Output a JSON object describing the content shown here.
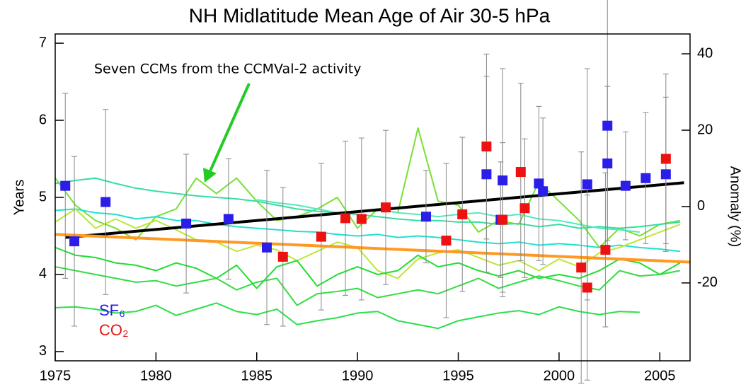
{
  "chart_data": {
    "type": "line",
    "title": "NH Midlatitude Mean Age of Air  30-5 hPa",
    "ylabel": "Years",
    "y2label": "Anomaly (%)",
    "annotation": "Seven CCMs from the CCMVal-2 activity",
    "xlim": [
      1975,
      2006.5
    ],
    "xticks": [
      1975,
      1980,
      1985,
      1990,
      1995,
      2000,
      2005
    ],
    "ylim": [
      2.88,
      7.12
    ],
    "yticks": [
      3,
      4,
      5,
      6,
      7
    ],
    "y2lim": [
      -40.4,
      45.2
    ],
    "y2ticks": [
      -20,
      0,
      20,
      40
    ],
    "legend": "lower left",
    "series": [
      {
        "name": "SF₆",
        "color": "#2a1ee8",
        "marker": "square",
        "x": [
          1975.5,
          1975.95,
          1977.5,
          1981.5,
          1983.6,
          1985.5,
          1993.4,
          1996.4,
          1997.2,
          1997.1,
          1999.0,
          1999.2,
          2001.4,
          2002.4,
          2002.4,
          2003.3,
          2004.3,
          2005.3
        ],
        "values": [
          5.15,
          4.43,
          4.94,
          4.66,
          4.72,
          4.35,
          4.75,
          5.3,
          5.22,
          4.71,
          5.18,
          5.08,
          5.17,
          5.44,
          5.93,
          5.15,
          5.25,
          5.3
        ],
        "errors": [
          1.2,
          1.1,
          1.2,
          0.9,
          0.78,
          1.0,
          0.6,
          1.27,
          1.45,
          0.75,
          1.0,
          0.95,
          1.5,
          1.0,
          1.65,
          0.7,
          0.85,
          1.0
        ]
      },
      {
        "name": "CO₂",
        "color": "#ee1111",
        "marker": "square",
        "x": [
          1986.3,
          1988.2,
          1989.4,
          1990.2,
          1991.4,
          1994.4,
          1995.2,
          1996.4,
          1997.2,
          1998.1,
          1998.3,
          2001.1,
          2001.4,
          2002.3,
          2005.3
        ],
        "values": [
          4.23,
          4.49,
          4.73,
          4.72,
          4.87,
          4.44,
          4.78,
          5.66,
          4.71,
          5.33,
          4.86,
          4.09,
          3.83,
          4.32,
          5.5
        ],
        "errors": [
          0.9,
          0.95,
          1.0,
          1.05,
          1.0,
          1.0,
          1.0,
          1.2,
          1.0,
          1.15,
          0.9,
          1.5,
          1.2,
          1.0,
          1.1
        ]
      },
      {
        "color": "#77e033",
        "linewidth": 2,
        "x": [
          1975,
          1976,
          1977,
          1978,
          1979,
          1980,
          1981,
          1982,
          1983,
          1984,
          1985,
          1986,
          1987,
          1988,
          1989,
          1990,
          1991,
          1992,
          1993,
          1994,
          1995,
          1996,
          1997,
          1998,
          1999,
          2000,
          2001,
          2002,
          2003,
          2004,
          2005,
          2006
        ],
        "values": [
          5.25,
          4.9,
          4.7,
          4.6,
          4.45,
          4.75,
          4.85,
          5.25,
          5.05,
          5.25,
          4.95,
          4.7,
          4.75,
          4.85,
          5.0,
          4.6,
          4.85,
          4.8,
          5.9,
          4.95,
          4.9,
          4.55,
          4.7,
          4.65,
          5.2,
          4.95,
          4.7,
          4.35,
          4.6,
          4.5,
          4.65,
          4.7
        ]
      },
      {
        "color": "#33e0a0",
        "linewidth": 2,
        "x": [
          1975,
          1976,
          1977,
          1978,
          1979,
          1980,
          1981,
          1982,
          1983,
          1984,
          1985,
          1986,
          1987,
          1988,
          1989,
          1990,
          1991,
          1992,
          1993,
          1994,
          1995,
          1996,
          1997,
          1998,
          1999,
          2000,
          2001,
          2002,
          2003,
          2004,
          2005,
          2006
        ],
        "values": [
          5.18,
          5.22,
          5.25,
          5.18,
          5.12,
          5.08,
          5.05,
          5.02,
          5.0,
          4.98,
          4.95,
          4.9,
          4.85,
          4.82,
          4.8,
          4.78,
          4.75,
          4.72,
          4.7,
          4.7,
          4.68,
          4.68,
          4.65,
          4.66,
          4.62,
          4.65,
          4.6,
          4.62,
          4.6,
          4.62,
          4.65,
          4.68
        ]
      },
      {
        "color": "#22e0d0",
        "linewidth": 2,
        "x": [
          1975,
          1976,
          1977,
          1978,
          1979,
          1980,
          1981,
          1982,
          1983,
          1984,
          1985,
          1986,
          1987,
          1988,
          1989,
          1990,
          1991,
          1992,
          1993,
          1994,
          1995,
          1996,
          1997,
          1998,
          1999,
          2000,
          2001,
          2002,
          2003,
          2004,
          2005,
          2006
        ],
        "values": [
          4.83,
          4.85,
          4.8,
          4.78,
          4.72,
          4.75,
          4.7,
          4.7,
          4.65,
          4.62,
          4.6,
          4.58,
          4.56,
          4.55,
          4.52,
          4.5,
          4.52,
          4.48,
          4.5,
          4.48,
          4.45,
          4.42,
          4.4,
          4.42,
          4.38,
          4.4,
          4.38,
          4.35,
          4.38,
          4.35,
          4.33,
          4.3
        ]
      },
      {
        "color": "#55e8c0",
        "linewidth": 2,
        "x": [
          1985,
          1986,
          1987,
          1988,
          1989,
          1990,
          1991,
          1992,
          1993,
          1994,
          1995,
          1996,
          1997,
          1998,
          1999,
          2000,
          2001,
          2002,
          2003,
          2004
        ],
        "values": [
          4.97,
          4.93,
          4.9,
          4.85,
          4.8,
          4.82,
          4.85,
          4.8,
          4.78,
          4.75,
          4.78,
          4.8,
          4.75,
          4.78,
          4.72,
          4.7,
          4.65,
          4.6,
          4.58,
          4.55
        ]
      },
      {
        "color": "#bbe833",
        "linewidth": 2,
        "x": [
          1975,
          1976,
          1977,
          1978,
          1979,
          1980,
          1981,
          1982,
          1983,
          1984,
          1985,
          1986,
          1987,
          1988,
          1989,
          1990,
          1991,
          1992,
          1993,
          1994,
          1995,
          1996,
          1997,
          1998,
          1999,
          2000,
          2001,
          2002,
          2003,
          2004,
          2005,
          2006
        ],
        "values": [
          4.68,
          4.85,
          4.6,
          4.72,
          4.6,
          4.7,
          4.58,
          4.45,
          4.42,
          4.3,
          4.38,
          4.32,
          4.18,
          4.3,
          4.42,
          4.35,
          4.05,
          3.95,
          4.2,
          4.28,
          4.32,
          4.22,
          4.12,
          4.18,
          4.05,
          4.2,
          4.1,
          4.28,
          4.35,
          4.45,
          4.55,
          4.65
        ]
      },
      {
        "color": "#22dd33",
        "linewidth": 2,
        "x": [
          1975,
          1976,
          1977,
          1978,
          1979,
          1980,
          1981,
          1982,
          1983,
          1984,
          1985,
          1986,
          1987,
          1988,
          1989,
          1990,
          1991,
          1992,
          1993,
          1994,
          1995,
          1996,
          1997,
          1998,
          1999,
          2000,
          2001,
          2002,
          2003,
          2004,
          2005,
          2006
        ],
        "values": [
          4.35,
          4.25,
          4.22,
          4.15,
          4.12,
          4.05,
          4.15,
          4.08,
          3.95,
          4.12,
          3.82,
          4.1,
          4.18,
          3.85,
          4.0,
          4.1,
          4.0,
          4.05,
          4.25,
          4.1,
          4.15,
          4.05,
          3.98,
          4.05,
          3.95,
          4.0,
          3.95,
          4.05,
          4.2,
          4.15,
          4.0,
          4.15
        ]
      },
      {
        "color": "#33dd44",
        "linewidth": 2,
        "x": [
          1975,
          1976,
          1977,
          1978,
          1979,
          1980,
          1981,
          1982,
          1983,
          1984,
          1985,
          1986,
          1987,
          1988,
          1989,
          1990,
          1991,
          1992,
          1993,
          1994,
          1995,
          1996,
          1997,
          1998,
          1999,
          2000,
          2001,
          2002,
          2003,
          2004,
          2005,
          2006
        ],
        "values": [
          4.1,
          4.05,
          4.0,
          3.95,
          3.9,
          3.92,
          3.85,
          3.9,
          3.95,
          3.8,
          3.9,
          3.95,
          3.6,
          3.75,
          3.78,
          3.82,
          3.7,
          3.75,
          3.8,
          3.75,
          3.85,
          3.95,
          3.82,
          3.9,
          3.98,
          3.92,
          3.85,
          3.8,
          4.05,
          3.98,
          4.0,
          4.05
        ]
      },
      {
        "color": "#2be04a",
        "linewidth": 2,
        "x": [
          1975,
          1976,
          1977,
          1978,
          1979,
          1980,
          1981,
          1982,
          1983,
          1984,
          1985,
          1986,
          1987,
          1988,
          1989,
          1990,
          1991,
          1992,
          1993,
          1994,
          1995,
          1996,
          1997,
          1998,
          1999,
          2000,
          2001,
          2002,
          2003,
          2004
        ],
        "values": [
          3.57,
          3.58,
          3.55,
          3.5,
          3.52,
          3.6,
          3.47,
          3.55,
          3.63,
          3.52,
          3.48,
          3.55,
          3.35,
          3.4,
          3.44,
          3.5,
          3.52,
          3.4,
          3.35,
          3.3,
          3.4,
          3.45,
          3.5,
          3.53,
          3.48,
          3.58,
          3.52,
          3.48,
          3.52,
          3.51
        ]
      },
      {
        "color": "#000000",
        "linewidth": 4,
        "x": [
          1975.5,
          2006.2
        ],
        "values": [
          4.48,
          5.19
        ]
      },
      {
        "color": "#ff9922",
        "linewidth": 4,
        "x": [
          1975,
          2006.5
        ],
        "values": [
          4.52,
          4.16
        ]
      }
    ]
  }
}
